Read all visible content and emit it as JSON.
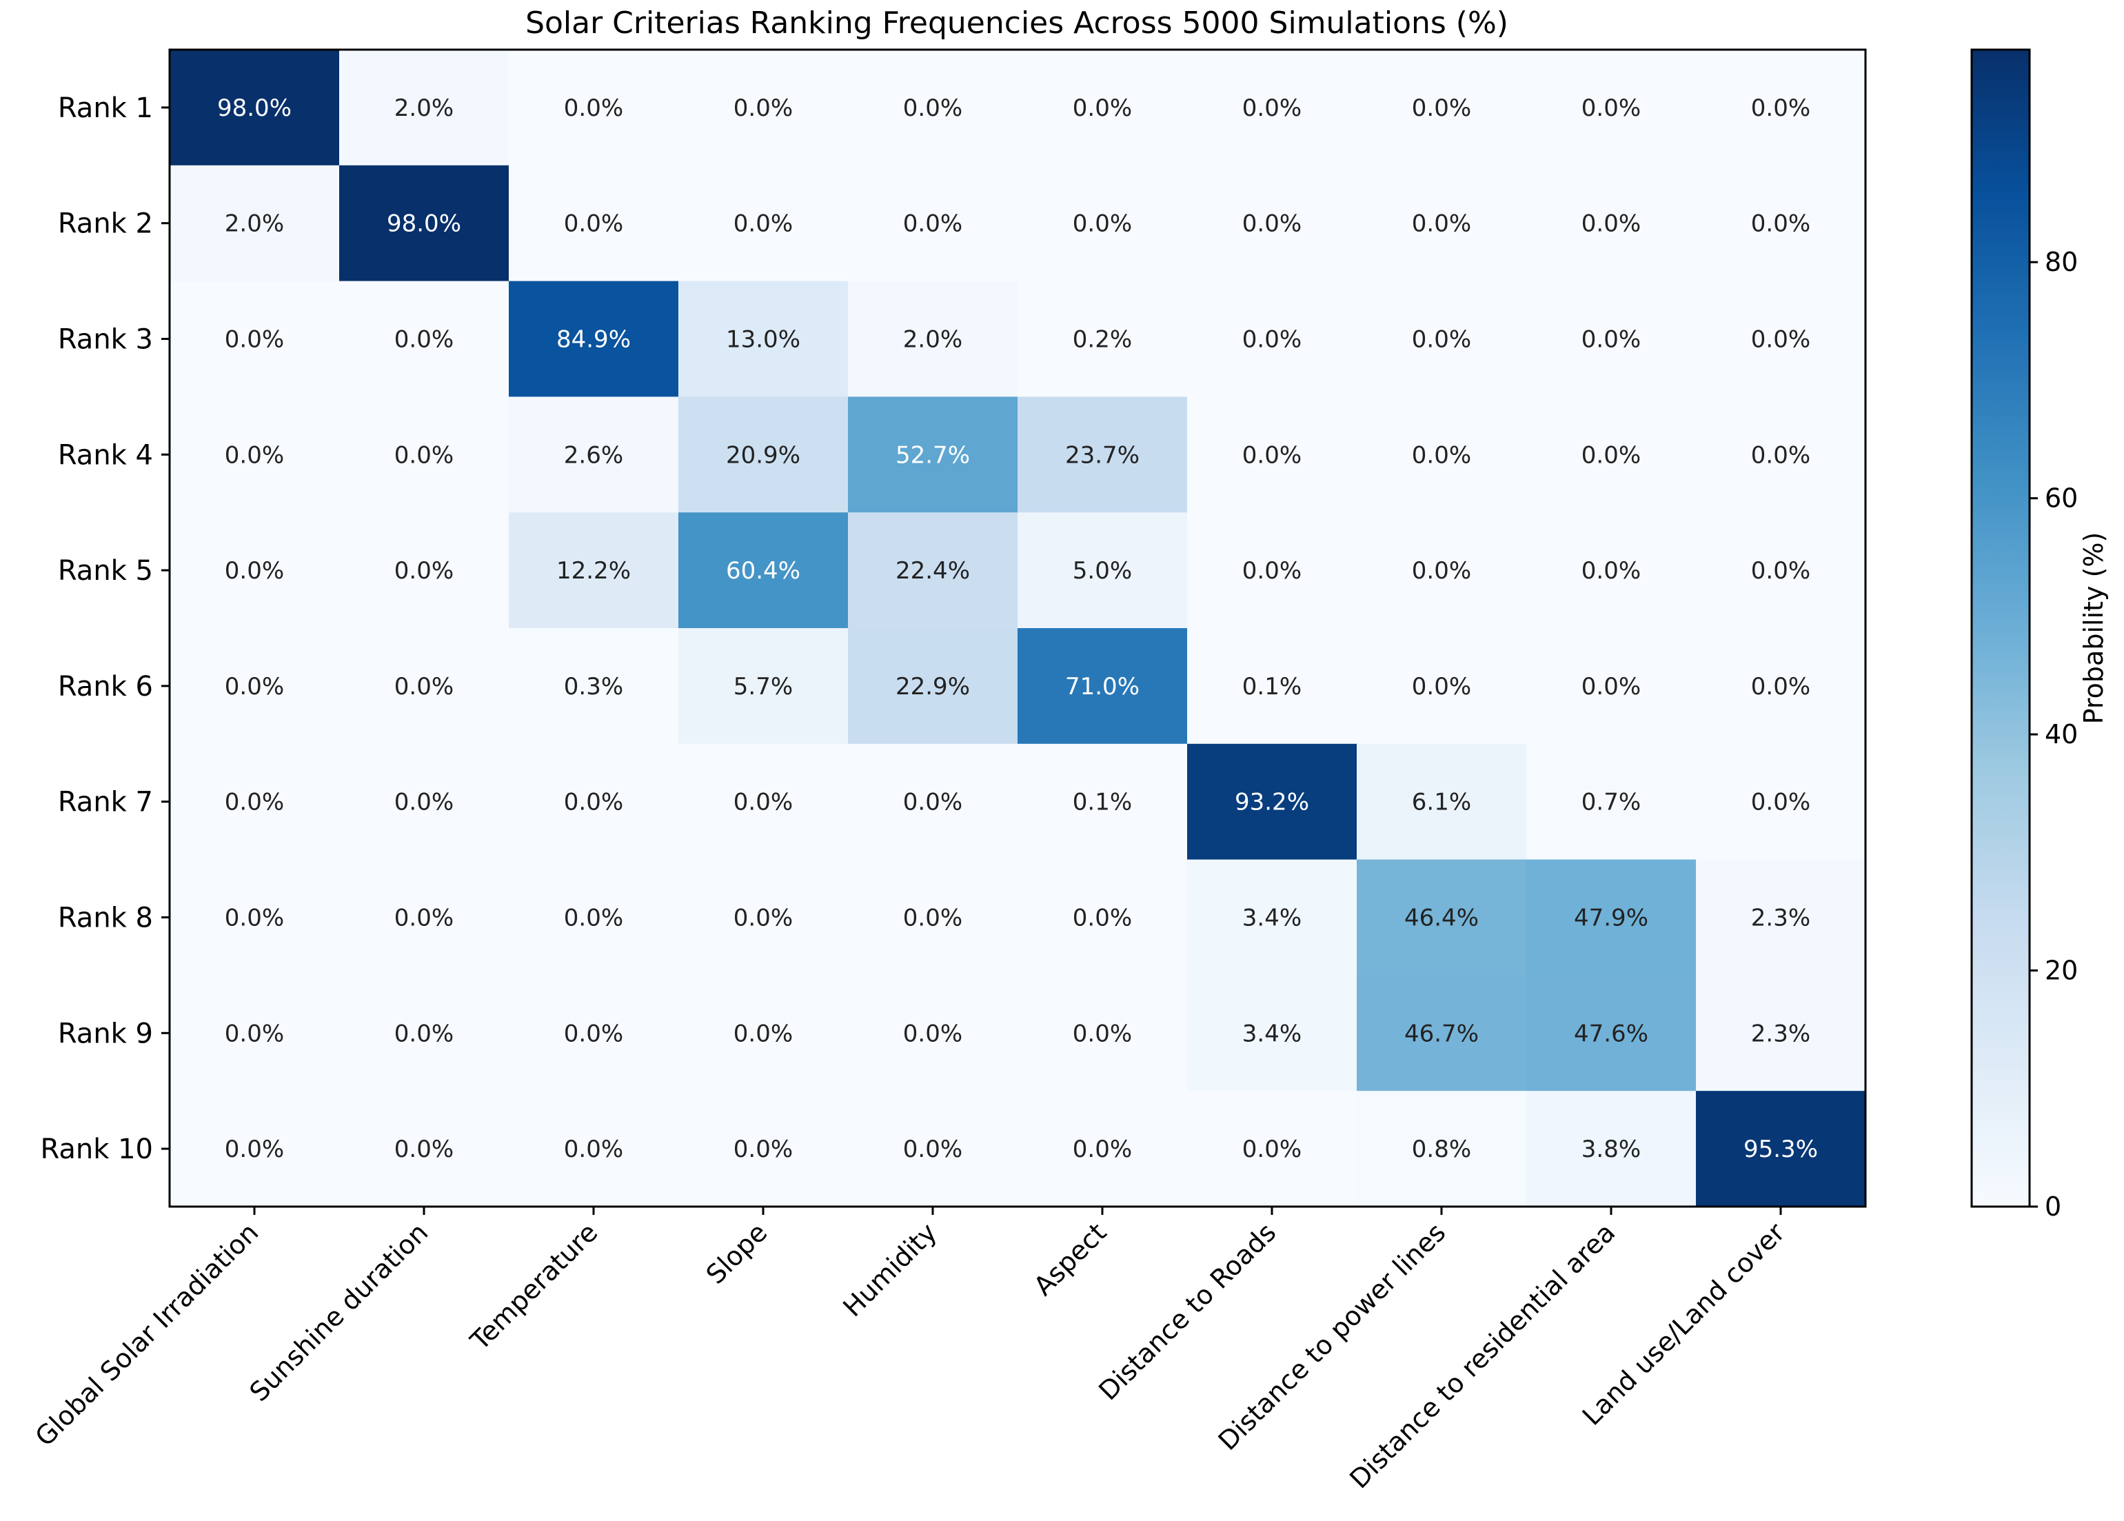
{
  "chart_data": {
    "type": "heatmap",
    "title": "Solar Criterias Ranking Frequencies Across 5000 Simulations (%)",
    "rows": [
      "Rank 1",
      "Rank 2",
      "Rank 3",
      "Rank 4",
      "Rank 5",
      "Rank 6",
      "Rank 7",
      "Rank 8",
      "Rank 9",
      "Rank 10"
    ],
    "columns": [
      "Global Solar Irradiation",
      "Sunshine duration",
      "Temperature",
      "Slope",
      "Humidity",
      "Aspect",
      "Distance to Roads",
      "Distance to power lines",
      "Distance to residential area",
      "Land use/Land cover"
    ],
    "values": [
      [
        98.0,
        2.0,
        0.0,
        0.0,
        0.0,
        0.0,
        0.0,
        0.0,
        0.0,
        0.0
      ],
      [
        2.0,
        98.0,
        0.0,
        0.0,
        0.0,
        0.0,
        0.0,
        0.0,
        0.0,
        0.0
      ],
      [
        0.0,
        0.0,
        84.9,
        13.0,
        2.0,
        0.2,
        0.0,
        0.0,
        0.0,
        0.0
      ],
      [
        0.0,
        0.0,
        2.6,
        20.9,
        52.7,
        23.7,
        0.0,
        0.0,
        0.0,
        0.0
      ],
      [
        0.0,
        0.0,
        12.2,
        60.4,
        22.4,
        5.0,
        0.0,
        0.0,
        0.0,
        0.0
      ],
      [
        0.0,
        0.0,
        0.3,
        5.7,
        22.9,
        71.0,
        0.1,
        0.0,
        0.0,
        0.0
      ],
      [
        0.0,
        0.0,
        0.0,
        0.0,
        0.0,
        0.1,
        93.2,
        6.1,
        0.7,
        0.0
      ],
      [
        0.0,
        0.0,
        0.0,
        0.0,
        0.0,
        0.0,
        3.4,
        46.4,
        47.9,
        2.3
      ],
      [
        0.0,
        0.0,
        0.0,
        0.0,
        0.0,
        0.0,
        3.4,
        46.7,
        47.6,
        2.3
      ],
      [
        0.0,
        0.0,
        0.0,
        0.0,
        0.0,
        0.0,
        0.0,
        0.8,
        3.8,
        95.3
      ]
    ],
    "value_format": "{v}%",
    "colormap": "Blues",
    "vmin": 0,
    "vmax": 98.0,
    "colorbar": {
      "label": "Probability (%)",
      "ticks": [
        0,
        20,
        40,
        60,
        80
      ]
    }
  }
}
